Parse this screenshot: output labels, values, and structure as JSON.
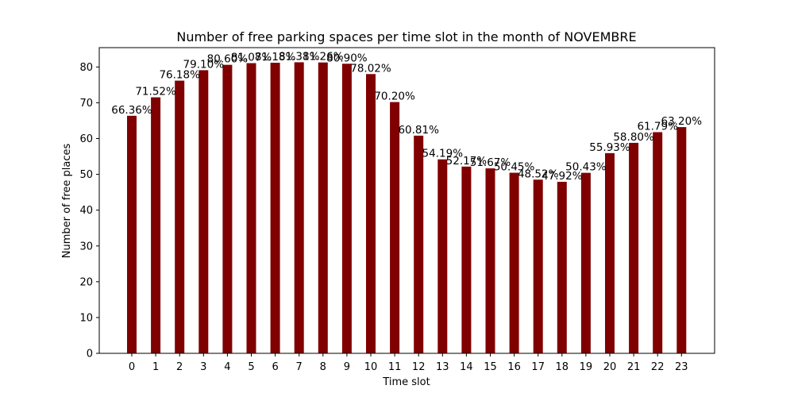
{
  "chart_data": {
    "type": "bar",
    "title": "Number of free parking spaces per time slot in the month of NOVEMBRE",
    "xlabel": "Time slot",
    "ylabel": "Number of free places",
    "categories": [
      "0",
      "1",
      "2",
      "3",
      "4",
      "5",
      "6",
      "7",
      "8",
      "9",
      "10",
      "11",
      "12",
      "13",
      "14",
      "15",
      "16",
      "17",
      "18",
      "19",
      "20",
      "21",
      "22",
      "23"
    ],
    "values": [
      66.36,
      71.52,
      76.18,
      79.1,
      80.6,
      81.07,
      81.18,
      81.31,
      81.26,
      80.9,
      78.02,
      70.2,
      60.81,
      54.19,
      52.17,
      51.67,
      50.45,
      48.52,
      47.92,
      50.43,
      55.93,
      58.8,
      61.79,
      63.2
    ],
    "data_labels": [
      "66.36%",
      "71.52%",
      "76.18%",
      "79.10%",
      "80.60%",
      "81.07%",
      "81.18%",
      "81.31%",
      "81.26%",
      "80.90%",
      "78.02%",
      "70.20%",
      "60.81%",
      "54.19%",
      "52.17%",
      "51.67%",
      "50.45%",
      "48.52%",
      "47.92%",
      "50.43%",
      "55.93%",
      "58.80%",
      "61.79%",
      "63.20%"
    ],
    "yticks": [
      0,
      10,
      20,
      30,
      40,
      50,
      60,
      70,
      80
    ],
    "ylim": [
      0,
      85.4
    ],
    "bar_color": "#800000",
    "grid": false,
    "legend": false
  }
}
